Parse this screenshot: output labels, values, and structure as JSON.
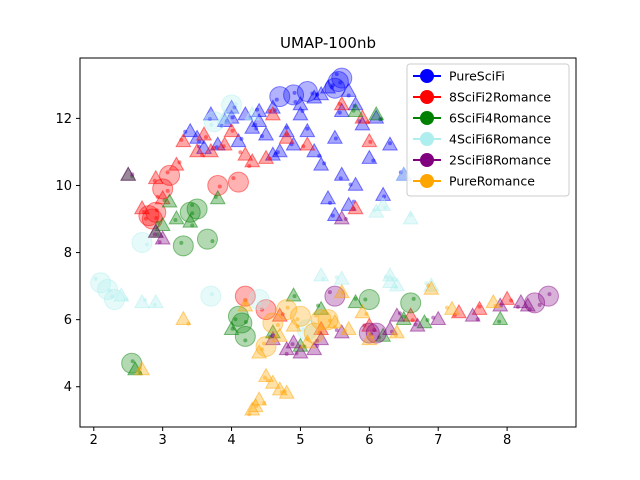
{
  "chart_data": {
    "type": "scatter",
    "title": "UMAP-100nb",
    "xlabel": "",
    "ylabel": "",
    "xlim": [
      1.8,
      9.0
    ],
    "ylim": [
      2.8,
      13.8
    ],
    "xticks": [
      2,
      3,
      4,
      5,
      6,
      7,
      8
    ],
    "yticks": [
      4,
      6,
      8,
      10,
      12
    ],
    "legend_position": "top-right",
    "grid": false,
    "marker_legend": [
      {
        "marker": "circle",
        "size": "large"
      },
      {
        "marker": "triangle",
        "size": "small"
      }
    ],
    "series": [
      {
        "name": "PureSciFi",
        "color": "#0000ff",
        "points": [
          [
            5.6,
            13.2
          ],
          [
            5.55,
            13.1
          ],
          [
            5.5,
            12.9
          ],
          [
            5.1,
            12.8
          ],
          [
            4.9,
            12.7
          ],
          [
            4.7,
            12.65
          ],
          [
            5.4,
            12.9
          ],
          [
            5.7,
            12.8
          ],
          [
            5.3,
            12.7
          ],
          [
            5.2,
            12.6
          ],
          [
            5.8,
            12.4
          ],
          [
            5.0,
            12.4
          ],
          [
            4.6,
            12.3
          ],
          [
            4.4,
            12.2
          ],
          [
            4.2,
            12.1
          ],
          [
            4.0,
            12.0
          ],
          [
            3.9,
            11.9
          ],
          [
            4.3,
            11.7
          ],
          [
            4.8,
            11.6
          ],
          [
            4.5,
            11.5
          ],
          [
            4.1,
            11.3
          ],
          [
            3.8,
            11.2
          ],
          [
            3.6,
            11.1
          ],
          [
            3.5,
            11.4
          ],
          [
            4.9,
            11.2
          ],
          [
            5.2,
            11.0
          ],
          [
            5.5,
            11.4
          ],
          [
            5.9,
            11.8
          ],
          [
            6.1,
            12.0
          ],
          [
            5.1,
            11.6
          ],
          [
            4.7,
            11.0
          ],
          [
            5.3,
            10.6
          ],
          [
            5.6,
            10.3
          ],
          [
            5.8,
            10.0
          ],
          [
            5.4,
            9.6
          ],
          [
            5.5,
            9.1
          ],
          [
            5.7,
            9.4
          ],
          [
            6.2,
            9.7
          ],
          [
            6.5,
            10.3
          ],
          [
            6.0,
            10.8
          ],
          [
            6.3,
            11.2
          ],
          [
            4.4,
            11.9
          ],
          [
            4.0,
            12.3
          ],
          [
            3.7,
            12.1
          ],
          [
            3.4,
            11.6
          ],
          [
            5.0,
            12.1
          ],
          [
            5.6,
            12.2
          ],
          [
            4.6,
            10.9
          ]
        ],
        "marker_kind": [
          "c",
          "c",
          "c",
          "c",
          "c",
          "c",
          "t",
          "t",
          "t",
          "t",
          "t",
          "t",
          "t",
          "t",
          "t",
          "t",
          "t",
          "t",
          "t",
          "t",
          "t",
          "t",
          "t",
          "t",
          "t",
          "t",
          "t",
          "t",
          "t",
          "t",
          "t",
          "t",
          "t",
          "t",
          "t",
          "t",
          "t",
          "t",
          "t",
          "t",
          "t",
          "t",
          "t",
          "t",
          "t",
          "t",
          "t",
          "t"
        ]
      },
      {
        "name": "8SciFi2Romance",
        "color": "#ff0000",
        "points": [
          [
            4.1,
            10.1
          ],
          [
            3.8,
            10.0
          ],
          [
            3.1,
            10.3
          ],
          [
            3.0,
            9.9
          ],
          [
            2.9,
            9.2
          ],
          [
            2.8,
            9.1
          ],
          [
            2.85,
            9.0
          ],
          [
            4.2,
            6.7
          ],
          [
            4.5,
            6.3
          ],
          [
            3.7,
            11.0
          ],
          [
            3.9,
            11.2
          ],
          [
            4.2,
            10.9
          ],
          [
            3.6,
            11.5
          ],
          [
            3.3,
            11.3
          ],
          [
            3.5,
            11.0
          ],
          [
            4.0,
            11.6
          ],
          [
            4.3,
            10.7
          ],
          [
            4.5,
            10.8
          ],
          [
            4.8,
            11.4
          ],
          [
            5.1,
            11.2
          ],
          [
            3.2,
            10.6
          ],
          [
            2.9,
            10.2
          ],
          [
            3.0,
            9.6
          ],
          [
            2.7,
            9.3
          ],
          [
            5.6,
            12.4
          ],
          [
            5.9,
            12.0
          ],
          [
            6.0,
            11.3
          ],
          [
            4.6,
            12.1
          ],
          [
            8.0,
            6.6
          ],
          [
            7.6,
            6.3
          ],
          [
            7.3,
            6.2
          ],
          [
            4.7,
            6.1
          ],
          [
            5.3,
            5.7
          ],
          [
            6.0,
            5.8
          ],
          [
            6.6,
            6.1
          ],
          [
            5.8,
            9.3
          ]
        ],
        "marker_kind": [
          "c",
          "c",
          "c",
          "c",
          "c",
          "c",
          "c",
          "c",
          "c",
          "t",
          "t",
          "t",
          "t",
          "t",
          "t",
          "t",
          "t",
          "t",
          "t",
          "t",
          "t",
          "t",
          "t",
          "t",
          "t",
          "t",
          "t",
          "t",
          "t",
          "t",
          "t",
          "t",
          "t",
          "t",
          "t",
          "t"
        ]
      },
      {
        "name": "6SciFi4Romance",
        "color": "#008000",
        "points": [
          [
            3.5,
            9.3
          ],
          [
            3.4,
            9.2
          ],
          [
            3.3,
            8.2
          ],
          [
            3.65,
            8.4
          ],
          [
            2.55,
            4.7
          ],
          [
            4.1,
            6.1
          ],
          [
            4.15,
            5.9
          ],
          [
            4.2,
            5.5
          ],
          [
            6.0,
            6.6
          ],
          [
            6.6,
            6.5
          ],
          [
            3.2,
            9.0
          ],
          [
            3.0,
            8.8
          ],
          [
            2.9,
            8.6
          ],
          [
            3.8,
            9.6
          ],
          [
            2.6,
            4.5
          ],
          [
            4.0,
            5.7
          ],
          [
            4.6,
            5.6
          ],
          [
            5.0,
            5.2
          ],
          [
            5.8,
            6.5
          ],
          [
            6.2,
            5.5
          ],
          [
            6.8,
            5.9
          ],
          [
            7.9,
            6.0
          ],
          [
            3.1,
            9.5
          ],
          [
            3.4,
            8.9
          ],
          [
            5.8,
            12.2
          ],
          [
            6.1,
            12.1
          ],
          [
            4.9,
            6.7
          ],
          [
            5.3,
            6.3
          ],
          [
            2.5,
            10.3
          ],
          [
            6.5,
            6.0
          ]
        ],
        "marker_kind": [
          "c",
          "c",
          "c",
          "c",
          "c",
          "c",
          "c",
          "c",
          "c",
          "c",
          "t",
          "t",
          "t",
          "t",
          "t",
          "t",
          "t",
          "t",
          "t",
          "t",
          "t",
          "t",
          "t",
          "t",
          "t",
          "t",
          "t",
          "t",
          "t",
          "t"
        ]
      },
      {
        "name": "4SciFi6Romance",
        "color": "#aeeeee",
        "points": [
          [
            2.1,
            7.1
          ],
          [
            2.2,
            6.9
          ],
          [
            2.3,
            6.6
          ],
          [
            2.7,
            8.3
          ],
          [
            3.7,
            6.7
          ],
          [
            3.75,
            11.9
          ],
          [
            4.0,
            12.4
          ],
          [
            4.4,
            6.6
          ],
          [
            5.1,
            5.7
          ],
          [
            6.3,
            7.1
          ],
          [
            6.4,
            7.0
          ],
          [
            6.9,
            7.0
          ],
          [
            6.2,
            9.4
          ],
          [
            6.1,
            9.2
          ],
          [
            2.4,
            6.7
          ],
          [
            3.9,
            12.0
          ],
          [
            4.3,
            12.1
          ],
          [
            6.5,
            10.3
          ],
          [
            6.6,
            9.0
          ],
          [
            6.3,
            7.3
          ],
          [
            2.7,
            6.5
          ],
          [
            2.9,
            6.5
          ],
          [
            5.6,
            7.2
          ],
          [
            5.3,
            7.3
          ]
        ],
        "marker_kind": [
          "c",
          "c",
          "c",
          "c",
          "c",
          "c",
          "c",
          "c",
          "c",
          "t",
          "t",
          "t",
          "t",
          "t",
          "t",
          "t",
          "t",
          "t",
          "t",
          "t",
          "t",
          "t",
          "t",
          "t"
        ]
      },
      {
        "name": "2SciFi8Romance",
        "color": "#800080",
        "points": [
          [
            5.5,
            6.7
          ],
          [
            6.0,
            5.6
          ],
          [
            6.1,
            5.6
          ],
          [
            8.4,
            6.5
          ],
          [
            8.6,
            6.7
          ],
          [
            3.0,
            8.4
          ],
          [
            2.5,
            10.3
          ],
          [
            4.8,
            5.1
          ],
          [
            5.0,
            5.0
          ],
          [
            5.2,
            5.1
          ],
          [
            4.9,
            5.3
          ],
          [
            5.6,
            5.6
          ],
          [
            6.3,
            5.7
          ],
          [
            6.7,
            5.8
          ],
          [
            7.5,
            6.1
          ],
          [
            7.9,
            6.4
          ],
          [
            8.2,
            6.5
          ],
          [
            5.6,
            9.0
          ],
          [
            4.6,
            5.4
          ],
          [
            5.3,
            5.4
          ],
          [
            6.4,
            6.1
          ],
          [
            2.9,
            8.6
          ],
          [
            7.0,
            6.0
          ],
          [
            8.3,
            6.4
          ]
        ],
        "marker_kind": [
          "c",
          "c",
          "c",
          "c",
          "c",
          "t",
          "t",
          "t",
          "t",
          "t",
          "t",
          "t",
          "t",
          "t",
          "t",
          "t",
          "t",
          "t",
          "t",
          "t",
          "t",
          "t",
          "t",
          "t"
        ]
      },
      {
        "name": "PureRomance",
        "color": "#ffa500",
        "points": [
          [
            5.3,
            6.0
          ],
          [
            5.4,
            6.0
          ],
          [
            4.5,
            5.2
          ],
          [
            4.6,
            5.9
          ],
          [
            4.8,
            6.3
          ],
          [
            5.0,
            6.1
          ],
          [
            5.2,
            5.6
          ],
          [
            5.5,
            5.9
          ],
          [
            4.7,
            5.5
          ],
          [
            4.4,
            5.0
          ],
          [
            4.5,
            4.3
          ],
          [
            4.6,
            4.1
          ],
          [
            4.7,
            3.9
          ],
          [
            4.8,
            3.8
          ],
          [
            4.4,
            3.6
          ],
          [
            4.35,
            3.4
          ],
          [
            4.3,
            3.3
          ],
          [
            4.9,
            5.8
          ],
          [
            5.1,
            5.3
          ],
          [
            5.7,
            5.7
          ],
          [
            6.0,
            5.4
          ],
          [
            6.4,
            5.6
          ],
          [
            7.2,
            6.3
          ],
          [
            7.8,
            6.5
          ],
          [
            2.7,
            4.5
          ],
          [
            3.3,
            6.0
          ],
          [
            5.6,
            6.8
          ],
          [
            6.9,
            6.9
          ],
          [
            5.9,
            6.2
          ],
          [
            4.2,
            6.4
          ]
        ],
        "marker_kind": [
          "c",
          "c",
          "c",
          "c",
          "c",
          "c",
          "c",
          "t",
          "t",
          "t",
          "t",
          "t",
          "t",
          "t",
          "t",
          "t",
          "t",
          "t",
          "t",
          "t",
          "t",
          "t",
          "t",
          "t",
          "t",
          "t",
          "t",
          "t",
          "t",
          "t"
        ]
      }
    ]
  }
}
